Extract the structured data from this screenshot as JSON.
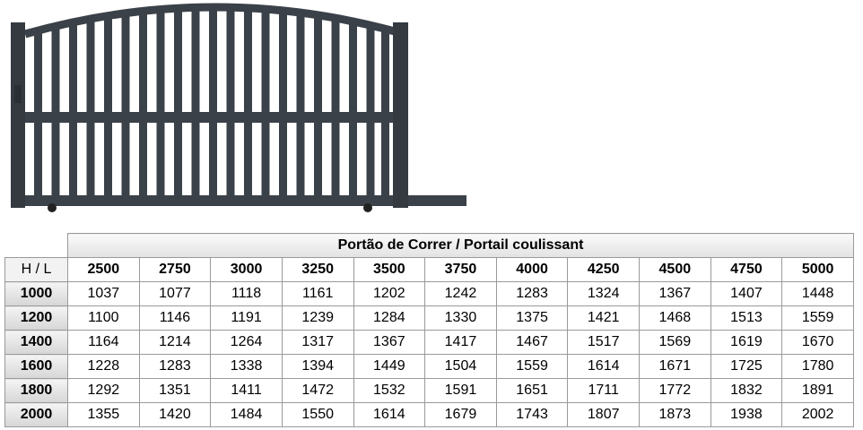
{
  "table": {
    "title": "Portão de Correr / Portail coulissant",
    "corner": "H  /  L",
    "columns": [
      2500,
      2750,
      3000,
      3250,
      3500,
      3750,
      4000,
      4250,
      4500,
      4750,
      5000
    ],
    "rows": [
      {
        "label": 1000,
        "values": [
          1037,
          1077,
          1118,
          1161,
          1202,
          1242,
          1283,
          1324,
          1367,
          1407,
          1448
        ]
      },
      {
        "label": 1200,
        "values": [
          1100,
          1146,
          1191,
          1239,
          1284,
          1330,
          1375,
          1421,
          1468,
          1513,
          1559
        ]
      },
      {
        "label": 1400,
        "values": [
          1164,
          1214,
          1264,
          1317,
          1367,
          1417,
          1467,
          1517,
          1569,
          1619,
          1670
        ]
      },
      {
        "label": 1600,
        "values": [
          1228,
          1283,
          1338,
          1394,
          1449,
          1504,
          1559,
          1614,
          1671,
          1725,
          1780
        ]
      },
      {
        "label": 1800,
        "values": [
          1292,
          1351,
          1411,
          1472,
          1532,
          1591,
          1651,
          1711,
          1772,
          1832,
          1891
        ]
      },
      {
        "label": 2000,
        "values": [
          1355,
          1420,
          1484,
          1550,
          1614,
          1679,
          1743,
          1807,
          1873,
          1938,
          2002
        ]
      }
    ]
  }
}
